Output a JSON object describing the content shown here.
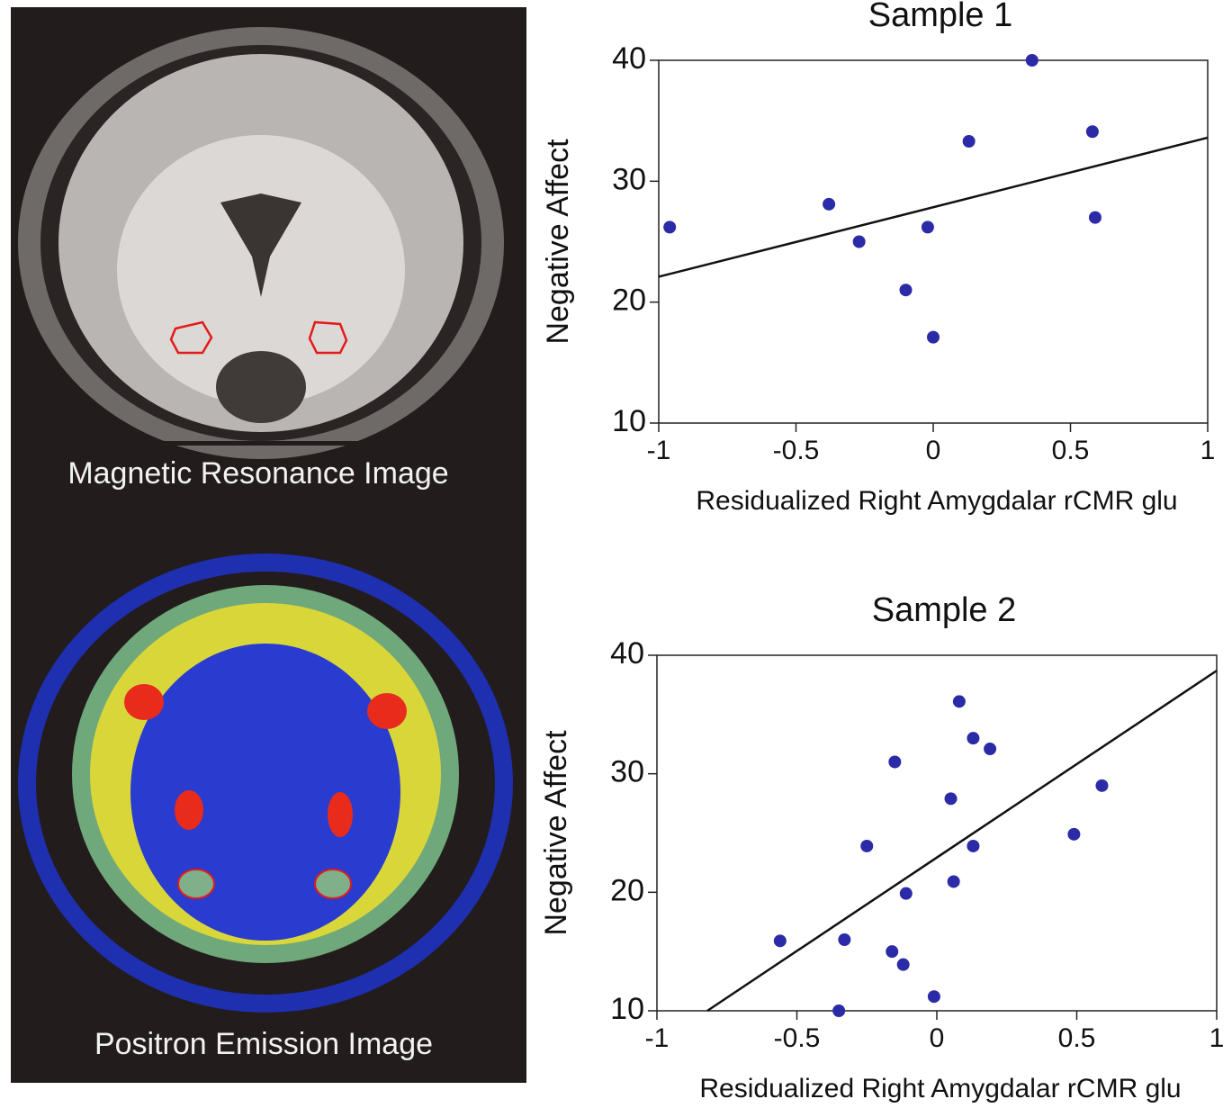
{
  "images": [
    {
      "caption": "Magnetic Resonance Image"
    },
    {
      "caption": "Positron Emission Image"
    }
  ],
  "chart_data": [
    {
      "type": "scatter",
      "title": "Sample 1",
      "x_label": "Residualized Right Amygdalar rCMR glu",
      "y_label": "Negative Affect",
      "color": "#2b2ba8",
      "x": [
        -0.96,
        -0.38,
        -0.27,
        -0.1,
        -0.02,
        0.0,
        0.13,
        0.36,
        0.58,
        0.59
      ],
      "values": [
        26.2,
        28.1,
        25.0,
        21.0,
        26.2,
        17.1,
        33.3,
        40.0,
        34.1,
        27.0
      ],
      "fit_line": {
        "x": [
          -1,
          1
        ],
        "values": [
          22.1,
          33.6
        ],
        "color": "#111111"
      },
      "xlim": [
        -1,
        1
      ],
      "ylim": [
        10,
        40
      ],
      "xticks": [
        -1,
        -0.5,
        0,
        0.5,
        1
      ],
      "yticks": [
        10,
        20,
        30,
        40
      ]
    },
    {
      "type": "scatter",
      "title": "Sample 2",
      "x_label": "Residualized Right Amygdalar rCMR glu",
      "y_label": "Negative Affect",
      "color": "#2b2ba8",
      "x": [
        -0.56,
        -0.35,
        -0.33,
        -0.25,
        -0.16,
        -0.15,
        -0.12,
        -0.11,
        -0.01,
        0.05,
        0.06,
        0.08,
        0.13,
        0.13,
        0.19,
        0.49,
        0.59
      ],
      "values": [
        15.9,
        10.0,
        16.0,
        23.9,
        15.0,
        31.0,
        13.9,
        19.9,
        11.2,
        27.9,
        20.9,
        36.1,
        33.0,
        23.9,
        32.1,
        24.9,
        29.0
      ],
      "fit_line": {
        "x": [
          -0.82,
          1
        ],
        "values": [
          10,
          38.7
        ],
        "color": "#111111"
      },
      "xlim": [
        -1,
        1
      ],
      "ylim": [
        10,
        40
      ],
      "xticks": [
        -1,
        -0.5,
        0,
        0.5,
        1
      ],
      "yticks": [
        10,
        20,
        30,
        40
      ]
    }
  ]
}
